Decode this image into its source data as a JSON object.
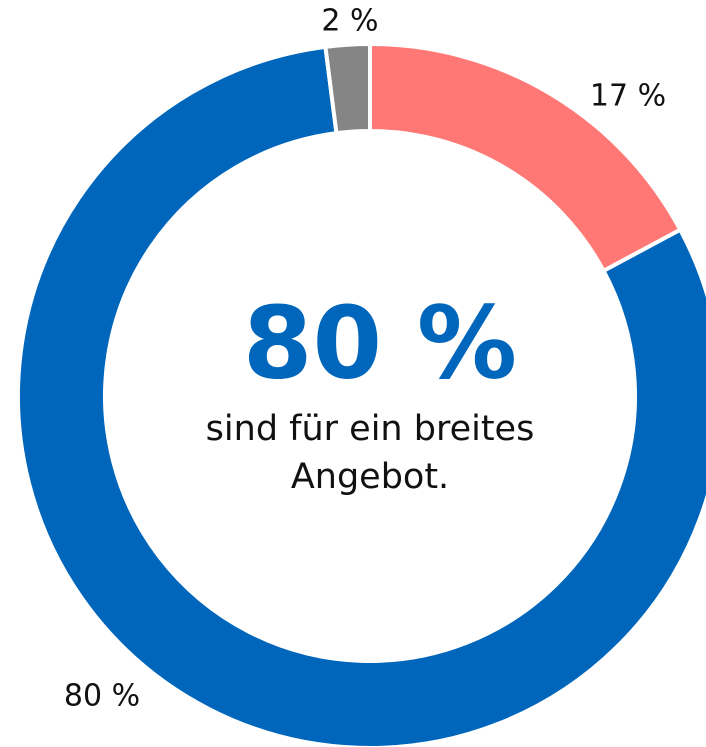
{
  "chart_data": {
    "type": "donut",
    "categories": [
      null,
      null,
      null
    ],
    "values": [
      17,
      80,
      2
    ],
    "value_labels": [
      "17 %",
      "80 %",
      "2 %"
    ],
    "colors": [
      "#ff7875",
      "#0066bb",
      "#858585"
    ],
    "center_label": "80 %",
    "annotation": "sind für ein breites Angebot."
  }
}
